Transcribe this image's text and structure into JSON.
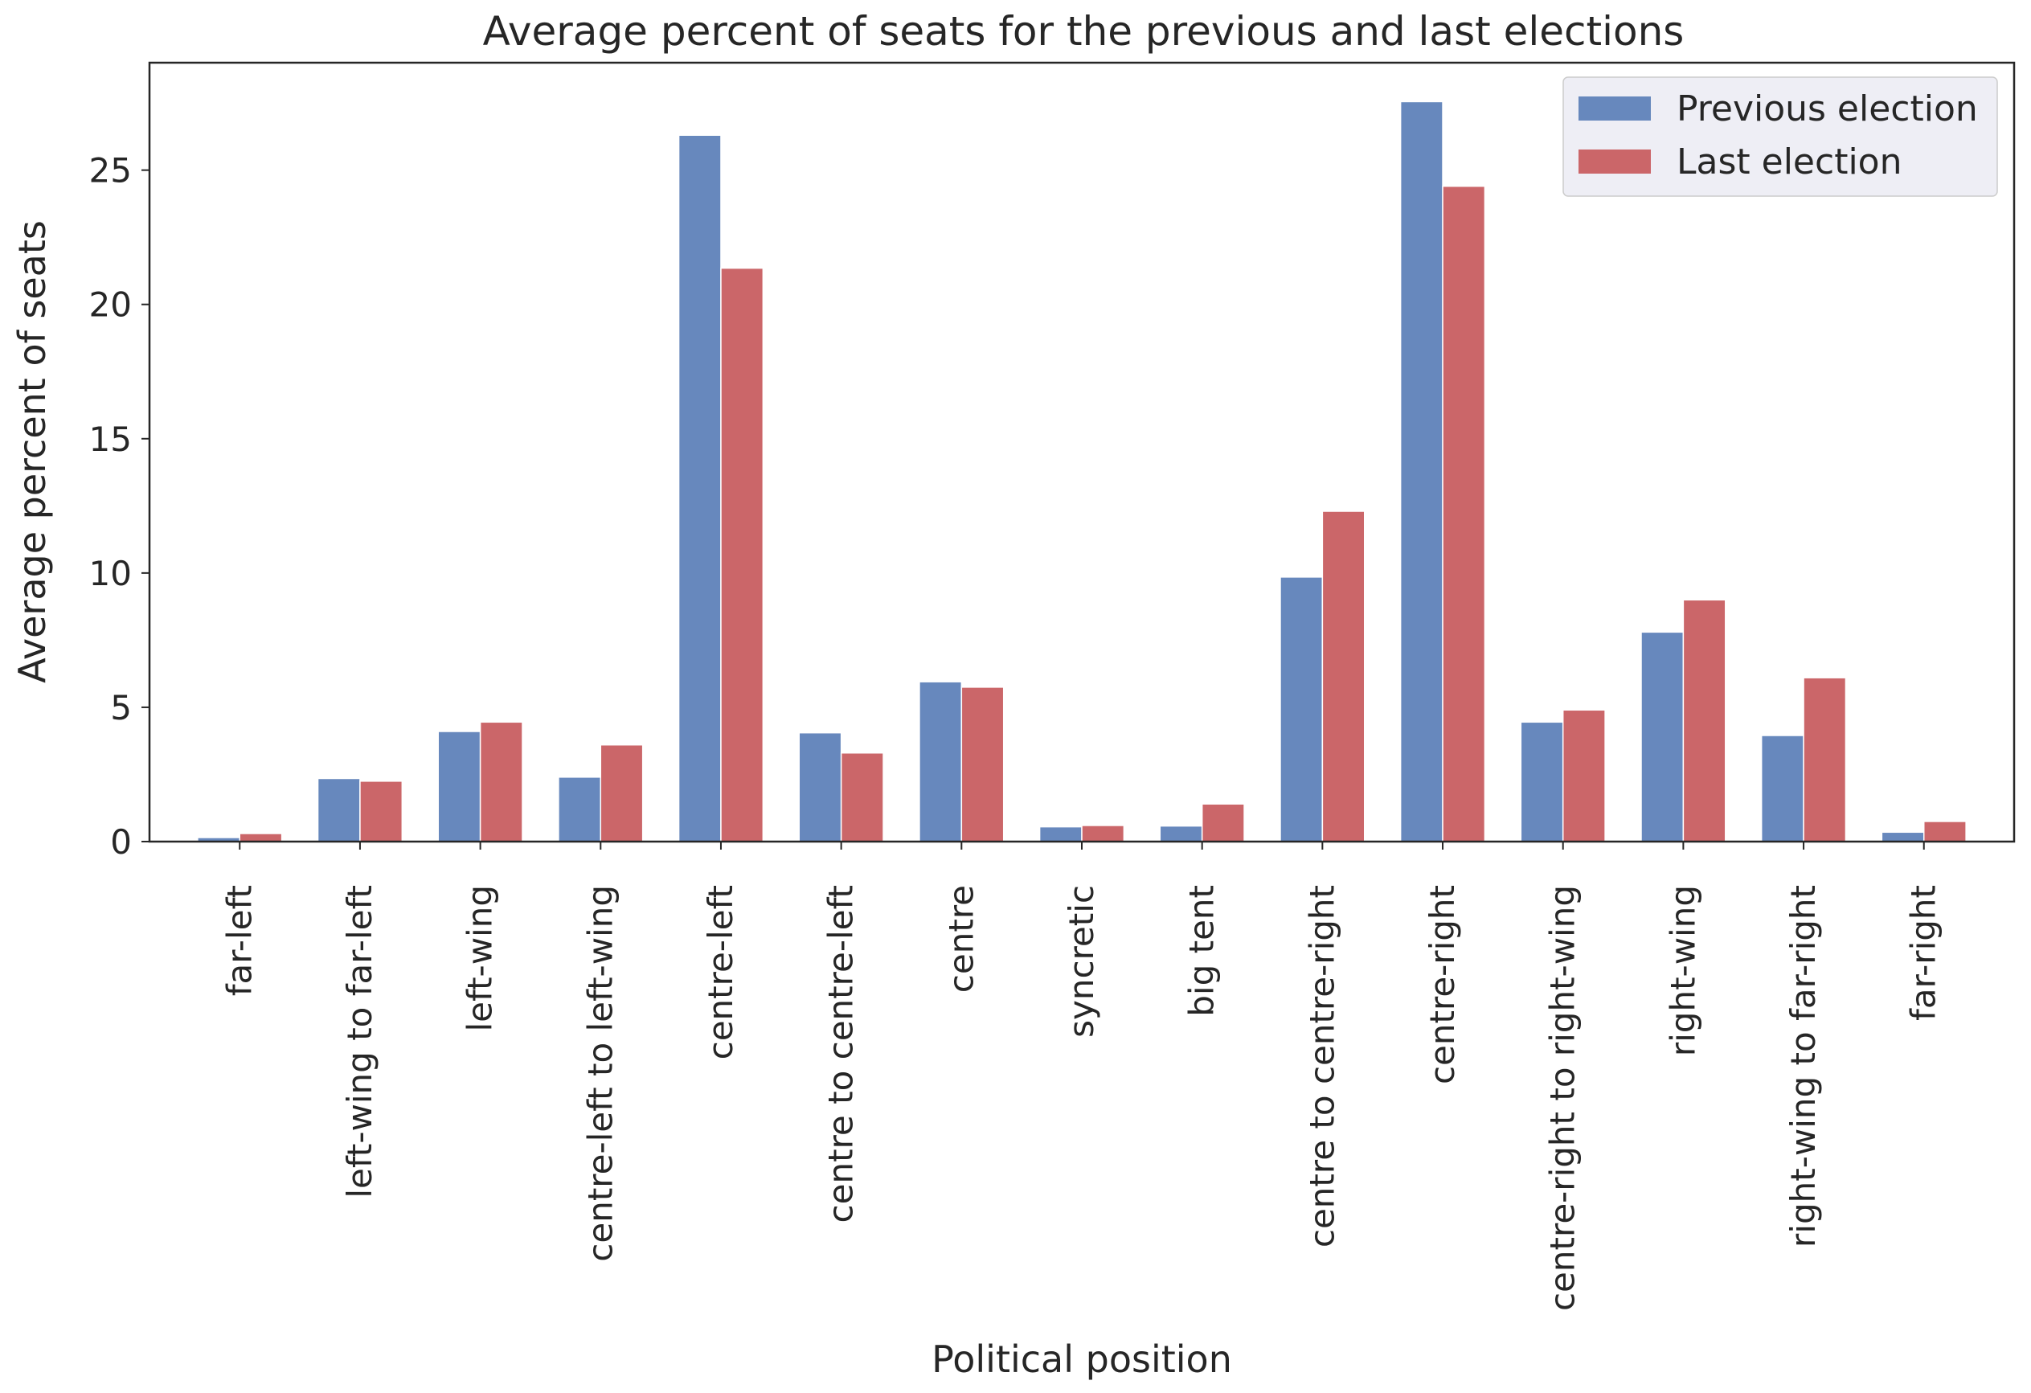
{
  "chart_data": {
    "type": "bar",
    "title": "Average percent of seats for the previous and last elections",
    "xlabel": "Political position",
    "ylabel": "Average percent of seats",
    "ylim": [
      0,
      29
    ],
    "yticks": [
      0,
      5,
      10,
      15,
      20,
      25
    ],
    "grid": false,
    "legend_position": "top-right",
    "categories": [
      "far-left",
      "left-wing to far-left",
      "left-wing",
      "centre-left to left-wing",
      "centre-left",
      "centre to centre-left",
      "centre",
      "syncretic",
      "big tent",
      "centre to centre-right",
      "centre-right",
      "centre-right to right-wing",
      "right-wing",
      "right-wing to far-right",
      "far-right"
    ],
    "series": [
      {
        "name": "Previous election",
        "color": "#6788bd",
        "values": [
          0.15,
          2.35,
          4.1,
          2.4,
          26.3,
          4.05,
          5.95,
          0.55,
          0.58,
          9.85,
          27.55,
          4.45,
          7.8,
          3.95,
          0.35
        ]
      },
      {
        "name": "Last election",
        "color": "#cb6669",
        "values": [
          0.3,
          2.25,
          4.45,
          3.6,
          21.35,
          3.3,
          5.75,
          0.6,
          1.4,
          12.3,
          24.4,
          4.9,
          9.0,
          6.1,
          0.75
        ]
      }
    ]
  }
}
